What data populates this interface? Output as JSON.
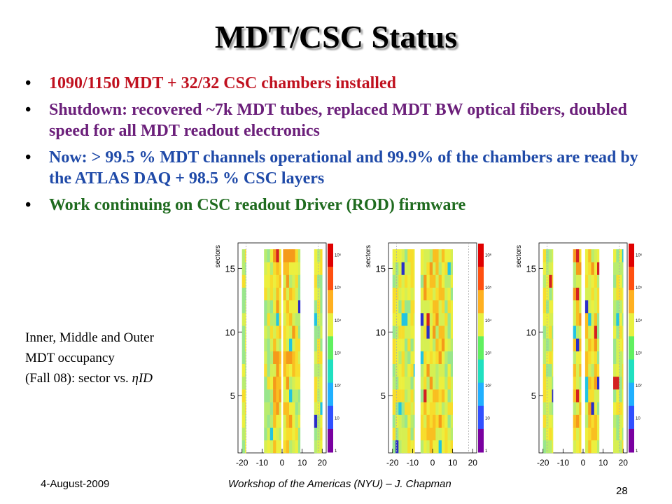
{
  "title": "MDT/CSC Status",
  "bullets": [
    {
      "text": "1090/1150 MDT + 32/32 CSC chambers installed",
      "color": "#c0111f"
    },
    {
      "text": "Shutdown: recovered ~7k MDT tubes, replaced MDT BW optical fibers, doubled speed for all MDT readout electronics",
      "color": "#6b1f7a"
    },
    {
      "text": "Now: > 99.5 % MDT channels operational and 99.9% of the chambers are read by the ATLAS DAQ + 98.5 % CSC layers",
      "color": "#1f4aa8"
    },
    {
      "text": "Work continuing on CSC readout Driver (ROD) firmware",
      "color": "#1f6b1f"
    }
  ],
  "caption": {
    "line1": "Inner, Middle and Outer",
    "line2": "MDT occupancy",
    "line3_prefix": "(Fall 08): sector vs. ",
    "line3_italic": "ηID"
  },
  "plots": {
    "ylabel": "sectors",
    "x_ticks": [
      "-20",
      "-10",
      "0",
      "10",
      "20"
    ],
    "y_ticks": [
      "5",
      "10",
      "15"
    ],
    "z_ticks": [
      "1",
      "10",
      "10²",
      "10³",
      "10⁴",
      "10⁵",
      "10⁶"
    ],
    "panels": [
      "inner",
      "middle",
      "outer"
    ]
  },
  "footer": {
    "date": "4-August-2009",
    "center": "Workshop of the Americas (NYU) – J. Chapman",
    "page": "28"
  }
}
